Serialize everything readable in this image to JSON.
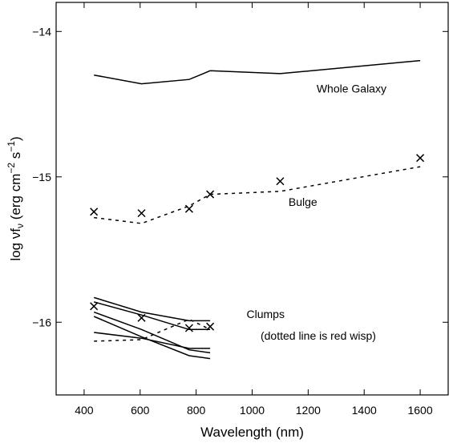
{
  "chart_data": {
    "type": "line",
    "xlabel": "Wavelength (nm)",
    "ylabel": {
      "base": "log νf",
      "sub": "ν",
      "units_open": " (erg cm",
      "exp1": "−2",
      "mid": " s",
      "exp2": "−1",
      "units_close": ")"
    },
    "xlim": [
      300,
      1700
    ],
    "ylim": [
      -16.5,
      -13.8
    ],
    "xticks": [
      400,
      600,
      800,
      1000,
      1200,
      1400,
      1600
    ],
    "xtick_labels": [
      "400",
      "600",
      "800",
      "1000",
      "1200",
      "1400",
      "1600"
    ],
    "yticks": [
      -14,
      -15,
      -16
    ],
    "ytick_labels": [
      "−14",
      "−15",
      "−16"
    ],
    "grid": false,
    "legend": "none",
    "series": [
      {
        "style": "solid",
        "x": [
          435,
          605,
          775,
          850,
          1100,
          1600
        ],
        "y": [
          -14.3,
          -14.36,
          -14.33,
          -14.27,
          -14.29,
          -14.2
        ]
      },
      {
        "style": "dashed",
        "x": [
          435,
          605,
          775,
          850,
          1100,
          1600
        ],
        "y": [
          -15.28,
          -15.32,
          -15.2,
          -15.12,
          -15.1,
          -14.93
        ]
      },
      {
        "style": "markers",
        "marker": "x",
        "x": [
          435,
          605,
          775,
          850,
          1100,
          1600
        ],
        "y": [
          -15.24,
          -15.25,
          -15.22,
          -15.12,
          -15.03,
          -14.87
        ]
      },
      {
        "style": "solid",
        "x": [
          435,
          605,
          775,
          850
        ],
        "y": [
          -15.83,
          -15.93,
          -15.99,
          -15.99
        ]
      },
      {
        "style": "solid",
        "x": [
          435,
          605,
          775,
          850
        ],
        "y": [
          -15.86,
          -15.95,
          -16.05,
          -16.05
        ]
      },
      {
        "style": "solid",
        "x": [
          435,
          605,
          775,
          850
        ],
        "y": [
          -15.93,
          -16.05,
          -16.19,
          -16.21
        ]
      },
      {
        "style": "solid",
        "x": [
          435,
          605,
          775,
          850
        ],
        "y": [
          -15.96,
          -16.1,
          -16.23,
          -16.25
        ]
      },
      {
        "style": "solid",
        "x": [
          435,
          605,
          775,
          850
        ],
        "y": [
          -16.07,
          -16.11,
          -16.18,
          -16.18
        ]
      },
      {
        "style": "dashed",
        "x": [
          435,
          605,
          775,
          850
        ],
        "y": [
          -16.13,
          -16.12,
          -15.98,
          -16.05
        ]
      },
      {
        "style": "markers",
        "marker": "x",
        "x": [
          435,
          605,
          775,
          850
        ],
        "y": [
          -15.89,
          -15.97,
          -16.04,
          -16.03
        ]
      }
    ],
    "annotations": [
      {
        "text": "Whole Galaxy",
        "x": 1230,
        "y": -14.42
      },
      {
        "text": "Bulge",
        "x": 1130,
        "y": -15.2
      },
      {
        "text": "Clumps",
        "x": 980,
        "y": -15.97
      },
      {
        "text": "(dotted line is red wisp)",
        "x": 1030,
        "y": -16.12
      }
    ]
  }
}
